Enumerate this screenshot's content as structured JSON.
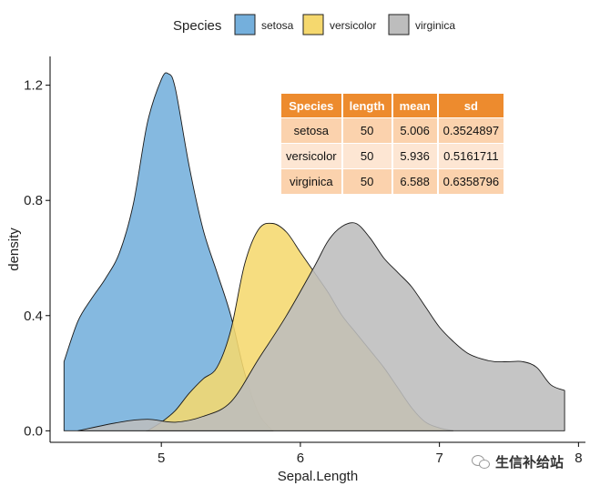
{
  "chart_data": {
    "type": "density",
    "title": "",
    "xlabel": "Sepal.Length",
    "ylabel": "density",
    "xlim": [
      4.2,
      8.05
    ],
    "ylim": [
      -0.04,
      1.3
    ],
    "xticks": [
      5,
      6,
      7,
      8
    ],
    "xtick_labels": [
      "5",
      "6",
      "7",
      "8"
    ],
    "yticks": [
      0.0,
      0.4,
      0.8,
      1.2
    ],
    "ytick_labels": [
      "0.0",
      "0.4",
      "0.8",
      "1.2"
    ],
    "grid": false,
    "legend": {
      "title": "Species",
      "position": "top",
      "entries": [
        "setosa",
        "versicolor",
        "virginica"
      ]
    },
    "series": [
      {
        "name": "setosa",
        "color": "#74afdc",
        "x": [
          4.3,
          4.4,
          4.5,
          4.6,
          4.7,
          4.8,
          4.9,
          5.0,
          5.05,
          5.1,
          5.2,
          5.3,
          5.4,
          5.5,
          5.6,
          5.7,
          5.8
        ],
        "y": [
          0.24,
          0.38,
          0.46,
          0.53,
          0.62,
          0.79,
          1.07,
          1.22,
          1.24,
          1.19,
          0.92,
          0.7,
          0.55,
          0.4,
          0.2,
          0.06,
          0.0
        ]
      },
      {
        "name": "versicolor",
        "color": "#f5d86e",
        "x": [
          4.9,
          5.0,
          5.1,
          5.2,
          5.3,
          5.4,
          5.5,
          5.6,
          5.7,
          5.8,
          5.9,
          6.0,
          6.1,
          6.2,
          6.3,
          6.4,
          6.5,
          6.6,
          6.7,
          6.8,
          6.9,
          7.0,
          7.1
        ],
        "y": [
          0.0,
          0.03,
          0.07,
          0.13,
          0.18,
          0.22,
          0.35,
          0.58,
          0.7,
          0.72,
          0.69,
          0.62,
          0.55,
          0.48,
          0.4,
          0.34,
          0.28,
          0.22,
          0.15,
          0.08,
          0.03,
          0.01,
          0.0
        ]
      },
      {
        "name": "virginica",
        "color": "#bdbdbd",
        "x": [
          4.4,
          4.7,
          4.9,
          5.1,
          5.3,
          5.5,
          5.7,
          5.9,
          6.1,
          6.2,
          6.3,
          6.4,
          6.5,
          6.6,
          6.7,
          6.8,
          6.9,
          7.0,
          7.1,
          7.2,
          7.3,
          7.4,
          7.5,
          7.6,
          7.7,
          7.8,
          7.9
        ],
        "y": [
          0.0,
          0.03,
          0.04,
          0.03,
          0.05,
          0.1,
          0.25,
          0.4,
          0.57,
          0.66,
          0.71,
          0.72,
          0.67,
          0.6,
          0.55,
          0.5,
          0.43,
          0.36,
          0.31,
          0.27,
          0.25,
          0.24,
          0.24,
          0.24,
          0.22,
          0.16,
          0.14
        ]
      }
    ]
  },
  "stats_table": {
    "headers": [
      "Species",
      "length",
      "mean",
      "sd"
    ],
    "rows": [
      [
        "setosa",
        "50",
        "5.006",
        "0.3524897"
      ],
      [
        "versicolor",
        "50",
        "5.936",
        "0.5161711"
      ],
      [
        "virginica",
        "50",
        "6.588",
        "0.6358796"
      ]
    ],
    "header_color": "#ed8b2e"
  },
  "watermark": {
    "text": "生信补给站",
    "icon": "wechat-icon"
  }
}
